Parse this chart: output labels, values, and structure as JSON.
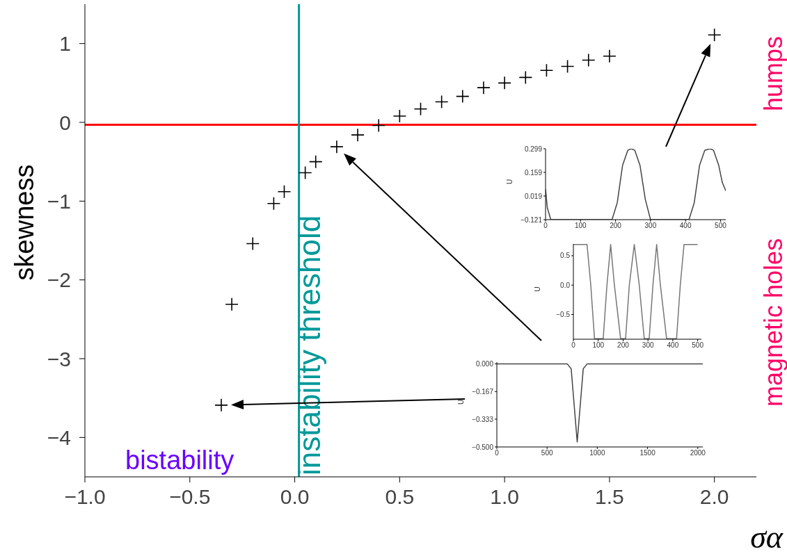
{
  "chart_data": [
    {
      "type": "scatter",
      "xlabel": "σα",
      "ylabel": "skewness",
      "marker": "cross",
      "x": [
        -0.35,
        -0.3,
        -0.2,
        -0.1,
        -0.05,
        0.05,
        0.1,
        0.2,
        0.3,
        0.4,
        0.5,
        0.6,
        0.7,
        0.8,
        0.9,
        1.0,
        1.1,
        1.2,
        1.3,
        1.4,
        1.5,
        2.0
      ],
      "series": [
        {
          "color": "#000000",
          "values": [
            -3.59,
            -2.31,
            -1.54,
            -1.03,
            -0.88,
            -0.64,
            -0.5,
            -0.31,
            -0.16,
            -0.04,
            0.08,
            0.17,
            0.26,
            0.33,
            0.44,
            0.5,
            0.57,
            0.66,
            0.71,
            0.79,
            0.84,
            1.11
          ]
        }
      ],
      "xlim": [
        -1.0,
        2.2
      ],
      "ylim": [
        -4.5,
        1.5
      ],
      "xticks": [
        {
          "value": -1.0,
          "label": "−1.0"
        },
        {
          "value": -0.5,
          "label": "−0.5"
        },
        {
          "value": 0,
          "label": "0.0"
        },
        {
          "value": 0.5,
          "label": "0.5"
        },
        {
          "value": 1.0,
          "label": "1.0"
        },
        {
          "value": 1.5,
          "label": "1.5"
        },
        {
          "value": 2.0,
          "label": "2.0"
        }
      ],
      "yticks": [
        {
          "value": -4,
          "label": "−4"
        },
        {
          "value": -3,
          "label": "−3"
        },
        {
          "value": -2,
          "label": "−2"
        },
        {
          "value": -1,
          "label": "−1"
        },
        0,
        1
      ],
      "ref_lines": [
        {
          "axis": "y",
          "value": -0.03,
          "color": "#ff0000"
        },
        {
          "axis": "x",
          "value": 0.02,
          "label": "instability threshold",
          "color": "#009999"
        }
      ],
      "annotations": [
        "bistability",
        "humps",
        "magnetic holes"
      ],
      "grid": false,
      "legend": false
    },
    {
      "type": "line",
      "ylabel": "U",
      "x": [
        0,
        5,
        15,
        190,
        205,
        220,
        235,
        245,
        255,
        270,
        285,
        300,
        410,
        425,
        440,
        455,
        470,
        480,
        495,
        505,
        515
      ],
      "series": [
        {
          "color": "#444444",
          "values": [
            0.06,
            -0.05,
            -0.121,
            -0.121,
            -0.02,
            0.2,
            0.29,
            0.299,
            0.29,
            0.2,
            0.0,
            -0.121,
            -0.121,
            -0.02,
            0.2,
            0.29,
            0.299,
            0.29,
            0.2,
            0.1,
            0.05
          ]
        }
      ],
      "xlim": [
        0,
        515
      ],
      "ylim": [
        -0.121,
        0.299
      ],
      "xticks": [
        0,
        100,
        200,
        300,
        400,
        500
      ],
      "yticks": [
        {
          "value": -0.121,
          "label": "−0.121"
        },
        0.019,
        0.159,
        0.299
      ],
      "grid": false,
      "legend": false
    },
    {
      "type": "line",
      "ylabel": "U",
      "x": [
        0,
        55,
        70,
        85,
        120,
        135,
        150,
        165,
        190,
        210,
        225,
        245,
        265,
        285,
        305,
        320,
        335,
        350,
        375,
        415,
        430,
        445,
        500
      ],
      "series": [
        {
          "color": "#777777",
          "values": [
            0.69,
            0.69,
            0.0,
            -0.91,
            -0.91,
            0.0,
            0.69,
            0.0,
            -0.91,
            -0.91,
            0.0,
            0.69,
            0.0,
            -0.91,
            -0.91,
            0.0,
            0.69,
            0.0,
            -0.91,
            -0.91,
            0.0,
            0.69,
            0.69
          ]
        }
      ],
      "xlim": [
        0,
        515
      ],
      "ylim": [
        -0.92,
        0.7
      ],
      "xticks": [
        0,
        100,
        200,
        300,
        400,
        500
      ],
      "yticks": [
        {
          "value": -0.5,
          "label": "−0.5"
        },
        {
          "value": 0,
          "label": "0.0"
        },
        0.5
      ],
      "grid": false,
      "legend": false
    },
    {
      "type": "line",
      "ylabel": "U",
      "x": [
        0,
        700,
        740,
        770,
        800,
        830,
        860,
        900,
        2050
      ],
      "series": [
        {
          "color": "#444444",
          "values": [
            0,
            0,
            -0.03,
            -0.25,
            -0.47,
            -0.25,
            -0.03,
            0,
            0
          ]
        }
      ],
      "xlim": [
        0,
        2050
      ],
      "ylim": [
        -0.5,
        0.01
      ],
      "xticks": [
        0,
        500,
        1000,
        1500,
        2000
      ],
      "yticks": [
        {
          "value": -0.5,
          "label": "−0.500"
        },
        {
          "value": -0.333,
          "label": "−0.333"
        },
        {
          "value": -0.167,
          "label": "−0.167"
        },
        {
          "value": 0,
          "label": "0.000"
        }
      ],
      "grid": false,
      "legend": false
    }
  ]
}
